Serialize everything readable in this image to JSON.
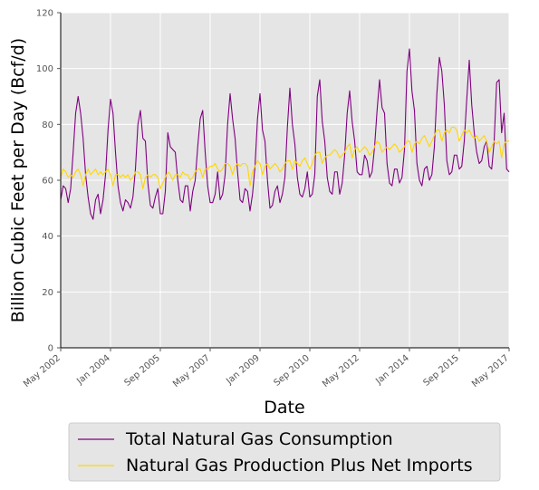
{
  "chart_data": {
    "type": "line",
    "xlabel": "Date",
    "ylabel": "Billion Cubic Feet per Day (Bcf/d)",
    "xlim": [
      "2002-05",
      "2017-05"
    ],
    "ylim": [
      0,
      120
    ],
    "grid": true,
    "legend_position": "bottom",
    "x_ticks": [
      {
        "date": "2002-05",
        "label": "May 2002"
      },
      {
        "date": "2004-01",
        "label": "Jan 2004"
      },
      {
        "date": "2005-09",
        "label": "Sep 2005"
      },
      {
        "date": "2007-05",
        "label": "May 2007"
      },
      {
        "date": "2009-01",
        "label": "Jan 2009"
      },
      {
        "date": "2010-09",
        "label": "Sep 2010"
      },
      {
        "date": "2012-05",
        "label": "May 2012"
      },
      {
        "date": "2014-01",
        "label": "Jan 2014"
      },
      {
        "date": "2015-09",
        "label": "Sep 2015"
      },
      {
        "date": "2017-05",
        "label": "May 2017"
      }
    ],
    "y_ticks": [
      0,
      20,
      40,
      60,
      80,
      100,
      120
    ],
    "series": [
      {
        "name": "Total Natural Gas Consumption",
        "color": "#800080",
        "x": [
          "2002-05",
          "2002-06",
          "2002-07",
          "2002-08",
          "2002-09",
          "2002-10",
          "2002-11",
          "2002-12",
          "2003-01",
          "2003-02",
          "2003-03",
          "2003-04",
          "2003-05",
          "2003-06",
          "2003-07",
          "2003-08",
          "2003-09",
          "2003-10",
          "2003-11",
          "2003-12",
          "2004-01",
          "2004-02",
          "2004-03",
          "2004-04",
          "2004-05",
          "2004-06",
          "2004-07",
          "2004-08",
          "2004-09",
          "2004-10",
          "2004-11",
          "2004-12",
          "2005-01",
          "2005-02",
          "2005-03",
          "2005-04",
          "2005-05",
          "2005-06",
          "2005-07",
          "2005-08",
          "2005-09",
          "2005-10",
          "2005-11",
          "2005-12",
          "2006-01",
          "2006-02",
          "2006-03",
          "2006-04",
          "2006-05",
          "2006-06",
          "2006-07",
          "2006-08",
          "2006-09",
          "2006-10",
          "2006-11",
          "2006-12",
          "2007-01",
          "2007-02",
          "2007-03",
          "2007-04",
          "2007-05",
          "2007-06",
          "2007-07",
          "2007-08",
          "2007-09",
          "2007-10",
          "2007-11",
          "2007-12",
          "2008-01",
          "2008-02",
          "2008-03",
          "2008-04",
          "2008-05",
          "2008-06",
          "2008-07",
          "2008-08",
          "2008-09",
          "2008-10",
          "2008-11",
          "2008-12",
          "2009-01",
          "2009-02",
          "2009-03",
          "2009-04",
          "2009-05",
          "2009-06",
          "2009-07",
          "2009-08",
          "2009-09",
          "2009-10",
          "2009-11",
          "2009-12",
          "2010-01",
          "2010-02",
          "2010-03",
          "2010-04",
          "2010-05",
          "2010-06",
          "2010-07",
          "2010-08",
          "2010-09",
          "2010-10",
          "2010-11",
          "2010-12",
          "2011-01",
          "2011-02",
          "2011-03",
          "2011-04",
          "2011-05",
          "2011-06",
          "2011-07",
          "2011-08",
          "2011-09",
          "2011-10",
          "2011-11",
          "2011-12",
          "2012-01",
          "2012-02",
          "2012-03",
          "2012-04",
          "2012-05",
          "2012-06",
          "2012-07",
          "2012-08",
          "2012-09",
          "2012-10",
          "2012-11",
          "2012-12",
          "2013-01",
          "2013-02",
          "2013-03",
          "2013-04",
          "2013-05",
          "2013-06",
          "2013-07",
          "2013-08",
          "2013-09",
          "2013-10",
          "2013-11",
          "2013-12",
          "2014-01",
          "2014-02",
          "2014-03",
          "2014-04",
          "2014-05",
          "2014-06",
          "2014-07",
          "2014-08",
          "2014-09",
          "2014-10",
          "2014-11",
          "2014-12",
          "2015-01",
          "2015-02",
          "2015-03",
          "2015-04",
          "2015-05",
          "2015-06",
          "2015-07",
          "2015-08",
          "2015-09",
          "2015-10",
          "2015-11",
          "2015-12",
          "2016-01",
          "2016-02",
          "2016-03",
          "2016-04",
          "2016-05",
          "2016-06",
          "2016-07",
          "2016-08",
          "2016-09",
          "2016-10",
          "2016-11",
          "2016-12",
          "2017-01",
          "2017-02",
          "2017-03",
          "2017-04",
          "2017-05"
        ],
        "y": [
          53,
          58,
          57,
          52,
          57,
          70,
          84,
          90,
          84,
          75,
          62,
          54,
          48,
          46,
          53,
          55,
          48,
          53,
          62,
          78,
          89,
          84,
          70,
          58,
          52,
          49,
          53,
          52,
          50,
          54,
          64,
          80,
          85,
          75,
          74,
          59,
          51,
          50,
          54,
          57,
          48,
          48,
          56,
          77,
          72,
          71,
          70,
          60,
          53,
          52,
          58,
          58,
          49,
          56,
          60,
          72,
          82,
          85,
          70,
          58,
          52,
          52,
          55,
          63,
          53,
          55,
          62,
          80,
          91,
          82,
          75,
          63,
          53,
          52,
          57,
          56,
          49,
          55,
          65,
          82,
          91,
          78,
          74,
          60,
          50,
          51,
          56,
          58,
          52,
          55,
          61,
          79,
          93,
          80,
          73,
          61,
          55,
          54,
          57,
          63,
          54,
          55,
          62,
          90,
          96,
          81,
          74,
          61,
          56,
          55,
          63,
          63,
          55,
          59,
          69,
          84,
          92,
          81,
          74,
          63,
          62,
          62,
          69,
          67,
          61,
          63,
          72,
          85,
          96,
          86,
          84,
          66,
          59,
          58,
          64,
          64,
          59,
          61,
          71,
          99,
          107,
          92,
          85,
          66,
          60,
          58,
          64,
          65,
          60,
          62,
          72,
          91,
          104,
          99,
          87,
          67,
          62,
          63,
          69,
          69,
          64,
          65,
          74,
          89,
          103,
          87,
          77,
          70,
          66,
          67,
          72,
          74,
          65,
          64,
          74,
          95,
          96,
          77,
          84,
          64,
          63
        ]
      },
      {
        "name": "Natural Gas Production Plus Net Imports",
        "color": "#FFD700",
        "x": [
          "2002-05",
          "2002-06",
          "2002-07",
          "2002-08",
          "2002-09",
          "2002-10",
          "2002-11",
          "2002-12",
          "2003-01",
          "2003-02",
          "2003-03",
          "2003-04",
          "2003-05",
          "2003-06",
          "2003-07",
          "2003-08",
          "2003-09",
          "2003-10",
          "2003-11",
          "2003-12",
          "2004-01",
          "2004-02",
          "2004-03",
          "2004-04",
          "2004-05",
          "2004-06",
          "2004-07",
          "2004-08",
          "2004-09",
          "2004-10",
          "2004-11",
          "2004-12",
          "2005-01",
          "2005-02",
          "2005-03",
          "2005-04",
          "2005-05",
          "2005-06",
          "2005-07",
          "2005-08",
          "2005-09",
          "2005-10",
          "2005-11",
          "2005-12",
          "2006-01",
          "2006-02",
          "2006-03",
          "2006-04",
          "2006-05",
          "2006-06",
          "2006-07",
          "2006-08",
          "2006-09",
          "2006-10",
          "2006-11",
          "2006-12",
          "2007-01",
          "2007-02",
          "2007-03",
          "2007-04",
          "2007-05",
          "2007-06",
          "2007-07",
          "2007-08",
          "2007-09",
          "2007-10",
          "2007-11",
          "2007-12",
          "2008-01",
          "2008-02",
          "2008-03",
          "2008-04",
          "2008-05",
          "2008-06",
          "2008-07",
          "2008-08",
          "2008-09",
          "2008-10",
          "2008-11",
          "2008-12",
          "2009-01",
          "2009-02",
          "2009-03",
          "2009-04",
          "2009-05",
          "2009-06",
          "2009-07",
          "2009-08",
          "2009-09",
          "2009-10",
          "2009-11",
          "2009-12",
          "2010-01",
          "2010-02",
          "2010-03",
          "2010-04",
          "2010-05",
          "2010-06",
          "2010-07",
          "2010-08",
          "2010-09",
          "2010-10",
          "2010-11",
          "2010-12",
          "2011-01",
          "2011-02",
          "2011-03",
          "2011-04",
          "2011-05",
          "2011-06",
          "2011-07",
          "2011-08",
          "2011-09",
          "2011-10",
          "2011-11",
          "2011-12",
          "2012-01",
          "2012-02",
          "2012-03",
          "2012-04",
          "2012-05",
          "2012-06",
          "2012-07",
          "2012-08",
          "2012-09",
          "2012-10",
          "2012-11",
          "2012-12",
          "2013-01",
          "2013-02",
          "2013-03",
          "2013-04",
          "2013-05",
          "2013-06",
          "2013-07",
          "2013-08",
          "2013-09",
          "2013-10",
          "2013-11",
          "2013-12",
          "2014-01",
          "2014-02",
          "2014-03",
          "2014-04",
          "2014-05",
          "2014-06",
          "2014-07",
          "2014-08",
          "2014-09",
          "2014-10",
          "2014-11",
          "2014-12",
          "2015-01",
          "2015-02",
          "2015-03",
          "2015-04",
          "2015-05",
          "2015-06",
          "2015-07",
          "2015-08",
          "2015-09",
          "2015-10",
          "2015-11",
          "2015-12",
          "2016-01",
          "2016-02",
          "2016-03",
          "2016-04",
          "2016-05",
          "2016-06",
          "2016-07",
          "2016-08",
          "2016-09",
          "2016-10",
          "2016-11",
          "2016-12",
          "2017-01",
          "2017-02",
          "2017-03",
          "2017-04",
          "2017-05"
        ],
        "y": [
          61,
          64,
          63,
          61,
          62,
          61,
          63,
          64,
          62,
          58,
          62,
          64,
          62,
          63,
          64,
          62,
          63,
          62,
          63,
          64,
          62,
          58,
          62,
          62,
          61,
          62,
          61,
          62,
          60,
          61,
          63,
          63,
          62,
          57,
          61,
          62,
          61,
          62,
          62,
          61,
          57,
          59,
          61,
          63,
          62,
          60,
          62,
          62,
          61,
          63,
          62,
          62,
          60,
          61,
          63,
          64,
          64,
          61,
          64,
          64,
          65,
          65,
          66,
          64,
          63,
          64,
          66,
          66,
          65,
          62,
          65,
          66,
          65,
          66,
          66,
          65,
          58,
          63,
          65,
          67,
          66,
          62,
          65,
          66,
          64,
          65,
          66,
          65,
          63,
          64,
          66,
          67,
          67,
          64,
          67,
          66,
          65,
          67,
          68,
          66,
          64,
          66,
          69,
          70,
          70,
          66,
          68,
          69,
          69,
          70,
          71,
          70,
          68,
          69,
          70,
          72,
          73,
          68,
          71,
          72,
          70,
          71,
          72,
          71,
          69,
          70,
          72,
          74,
          73,
          70,
          71,
          72,
          71,
          72,
          73,
          72,
          70,
          71,
          72,
          74,
          74,
          70,
          73,
          74,
          73,
          75,
          76,
          74,
          72,
          74,
          76,
          78,
          78,
          74,
          77,
          78,
          77,
          79,
          79,
          78,
          74,
          76,
          78,
          77,
          78,
          76,
          75,
          76,
          74,
          75,
          76,
          74,
          70,
          72,
          74,
          73,
          74,
          68,
          73,
          74,
          74
        ]
      }
    ]
  }
}
